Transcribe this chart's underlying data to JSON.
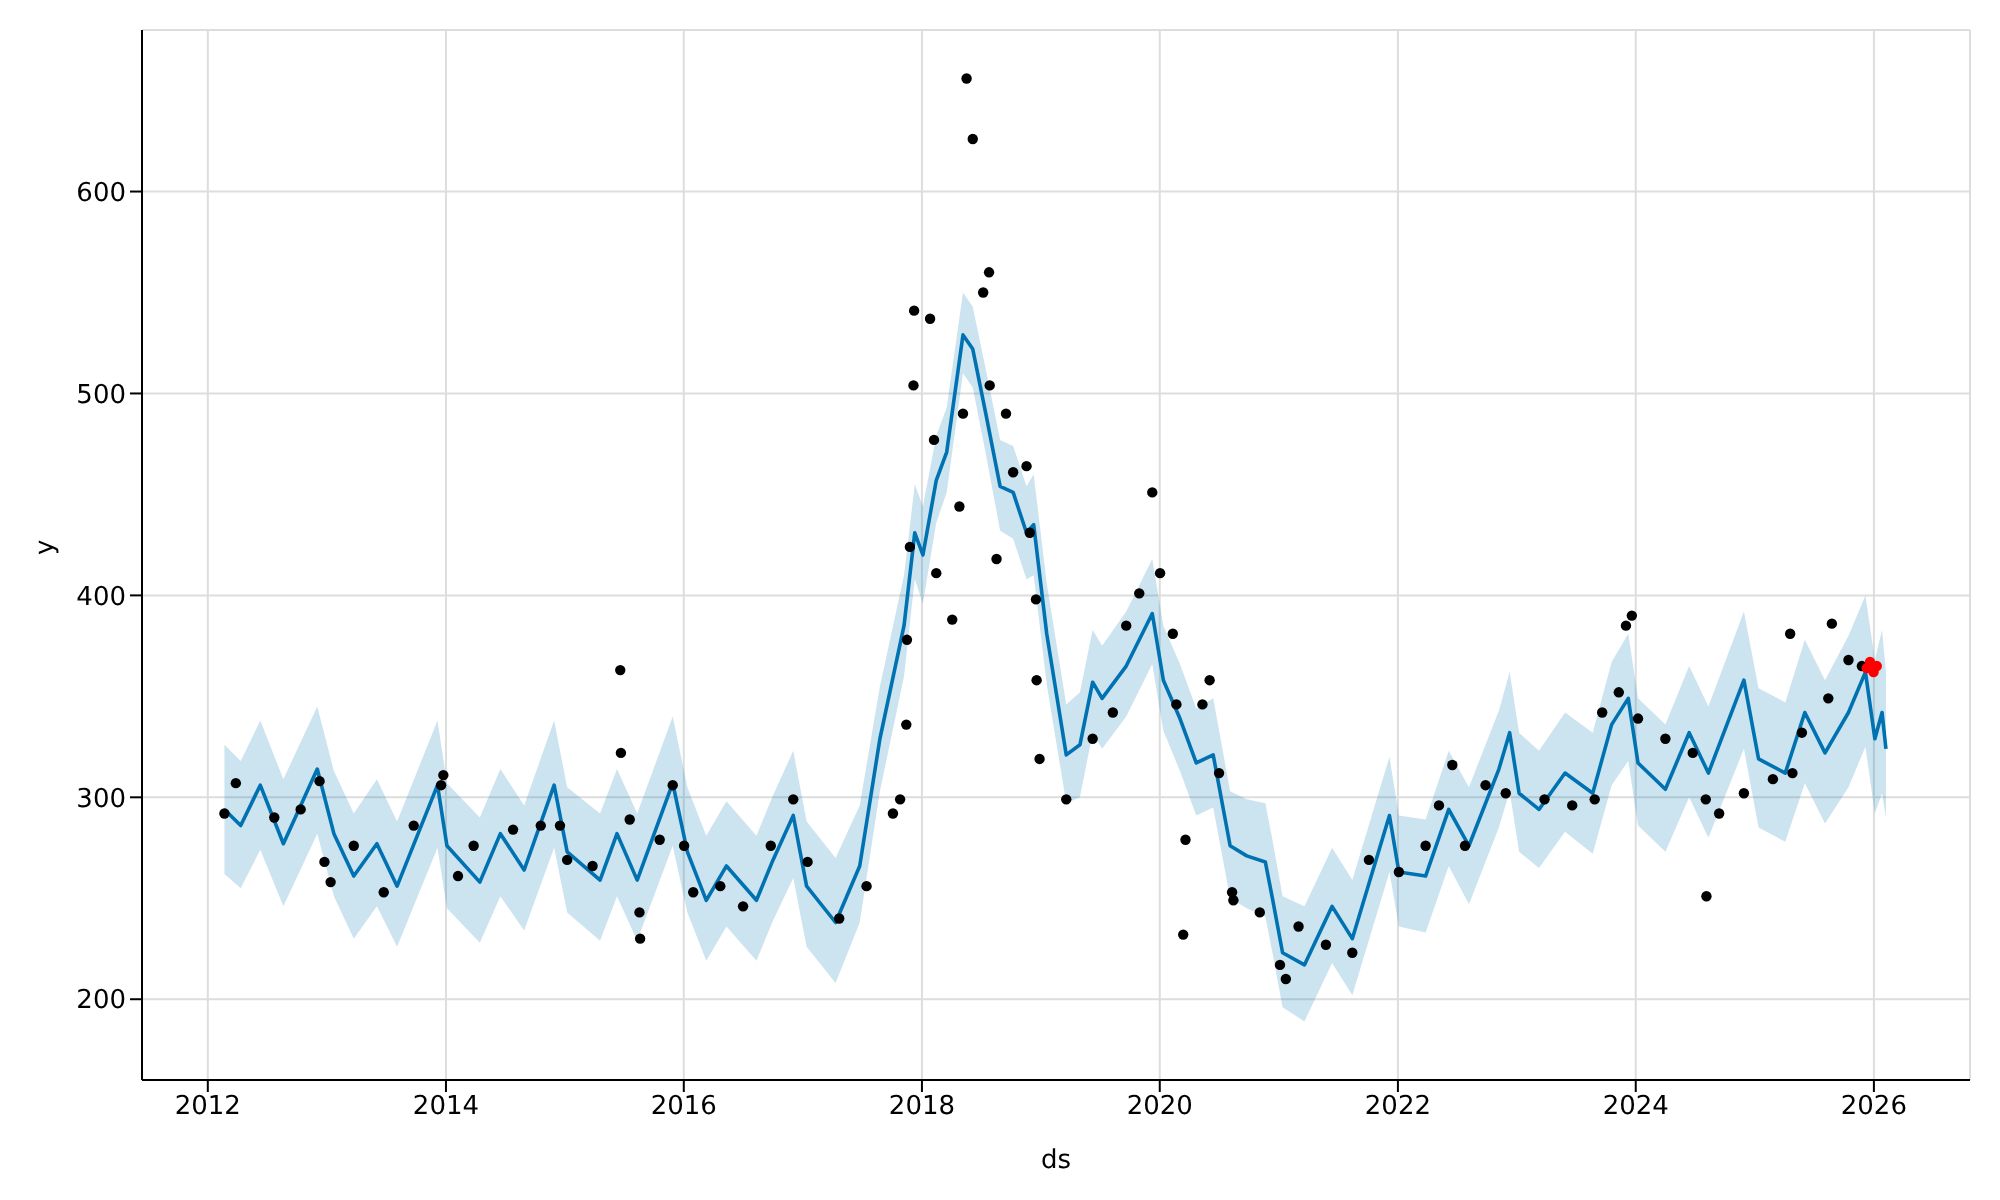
{
  "chart_data": {
    "type": "scatter",
    "xlabel": "ds",
    "ylabel": "y",
    "xlim": [
      "2011-06-13",
      "2026-10-23"
    ],
    "xticks": [
      "2012",
      "2014",
      "2016",
      "2018",
      "2020",
      "2022",
      "2024",
      "2026"
    ],
    "ylim": [
      160,
      680
    ],
    "yticks": [
      200,
      300,
      400,
      500,
      600
    ],
    "grid": true,
    "series": [
      {
        "type": "line",
        "color": "#0072b2",
        "x": [
          "2012-02-21",
          "2012-04-11",
          "2012-06-10",
          "2012-08-20",
          "2012-12-02",
          "2013-01-22",
          "2013-03-24",
          "2013-06-03",
          "2013-08-04",
          "2013-12-06",
          "2014-01-04",
          "2014-04-15",
          "2014-06-17",
          "2014-08-29",
          "2014-11-29",
          "2015-01-08",
          "2015-04-19",
          "2015-06-10",
          "2015-08-11",
          "2015-11-28",
          "2016-01-12",
          "2016-03-10",
          "2016-05-11",
          "2016-08-11",
          "2016-10-01",
          "2016-12-02",
          "2017-01-12",
          "2017-04-11",
          "2017-06-24",
          "2017-08-25",
          "2017-11-07",
          "2017-12-10",
          "2018-01-04",
          "2018-02-14",
          "2018-03-18",
          "2018-05-07",
          "2018-06-06",
          "2018-07-16",
          "2018-08-29",
          "2018-10-08",
          "2018-11-18",
          "2018-12-10",
          "2019-01-19",
          "2019-03-20",
          "2019-05-01",
          "2019-06-09",
          "2019-07-08",
          "2019-09-20",
          "2019-12-09",
          "2020-01-12",
          "2020-03-03",
          "2020-04-22",
          "2020-06-13",
          "2020-08-04",
          "2020-09-24",
          "2020-11-20",
          "2020-12-13",
          "2021-01-12",
          "2021-03-20",
          "2021-06-13",
          "2021-08-14",
          "2021-12-06",
          "2022-01-04",
          "2022-03-27",
          "2022-06-06",
          "2022-08-07",
          "2022-11-07",
          "2022-12-10",
          "2023-01-08",
          "2023-03-10",
          "2023-05-29",
          "2023-08-22",
          "2023-10-19",
          "2023-12-09",
          "2024-01-08",
          "2024-04-01",
          "2024-06-13",
          "2024-08-11",
          "2024-11-28",
          "2025-01-12",
          "2025-04-04",
          "2025-06-03",
          "2025-08-04",
          "2025-10-15",
          "2025-12-06",
          "2026-01-04",
          "2026-01-26",
          "2026-02-07"
        ],
        "values": [
          294,
          286,
          306,
          277,
          314,
          282,
          261,
          277,
          256,
          306,
          276,
          258,
          282,
          264,
          306,
          273,
          259,
          282,
          259,
          307,
          273,
          249,
          266,
          249,
          269,
          291,
          256,
          238,
          266,
          329,
          385,
          431,
          420,
          457,
          471,
          529,
          522,
          490,
          454,
          451,
          431,
          435,
          381,
          321,
          326,
          357,
          349,
          365,
          391,
          358,
          339,
          317,
          321,
          276,
          271,
          268,
          249,
          223,
          217,
          246,
          230,
          291,
          263,
          261,
          294,
          276,
          314,
          332,
          302,
          294,
          312,
          302,
          336,
          349,
          317,
          304,
          332,
          312,
          358,
          319,
          312,
          342,
          322,
          342,
          362,
          329,
          342,
          324
        ],
        "lower": [
          262,
          255,
          274,
          246,
          282,
          251,
          230,
          246,
          226,
          275,
          245,
          228,
          251,
          234,
          275,
          243,
          229,
          251,
          229,
          276,
          243,
          219,
          236,
          219,
          239,
          260,
          226,
          208,
          238,
          303,
          360,
          408,
          396,
          436,
          451,
          510,
          503,
          470,
          432,
          428,
          408,
          410,
          356,
          297,
          300,
          332,
          324,
          340,
          366,
          333,
          313,
          291,
          295,
          250,
          245,
          241,
          222,
          196,
          189,
          218,
          202,
          263,
          236,
          233,
          266,
          247,
          285,
          303,
          273,
          265,
          283,
          272,
          306,
          318,
          286,
          273,
          300,
          280,
          324,
          285,
          278,
          307,
          287,
          305,
          325,
          292,
          302,
          290
        ],
        "upper": [
          326,
          318,
          338,
          309,
          345,
          313,
          292,
          309,
          288,
          338,
          307,
          290,
          314,
          296,
          338,
          305,
          292,
          314,
          292,
          340,
          305,
          281,
          298,
          281,
          301,
          323,
          288,
          270,
          296,
          355,
          410,
          455,
          444,
          479,
          493,
          550,
          543,
          512,
          477,
          474,
          454,
          460,
          406,
          346,
          352,
          383,
          375,
          392,
          418,
          385,
          366,
          344,
          349,
          303,
          299,
          297,
          278,
          251,
          246,
          275,
          259,
          320,
          291,
          289,
          323,
          305,
          343,
          362,
          332,
          323,
          342,
          332,
          367,
          381,
          349,
          336,
          365,
          345,
          392,
          354,
          347,
          378,
          358,
          380,
          400,
          368,
          383,
          362
        ]
      },
      {
        "marker": "circle",
        "color": "#000000",
        "x": [
          "2012-02-21",
          "2012-03-27",
          "2012-07-23",
          "2012-10-12",
          "2012-12-09",
          "2012-12-24",
          "2013-01-12",
          "2013-03-24",
          "2013-06-24",
          "2013-09-24",
          "2013-12-17",
          "2013-12-24",
          "2014-02-07",
          "2014-03-27",
          "2014-07-26",
          "2014-10-19",
          "2014-12-17",
          "2015-01-08",
          "2015-03-27",
          "2015-06-20",
          "2015-06-22",
          "2015-07-19",
          "2015-08-18",
          "2015-08-20",
          "2015-10-19",
          "2015-11-28",
          "2016-01-02",
          "2016-01-30",
          "2016-04-22",
          "2016-07-01",
          "2016-09-24",
          "2016-12-02",
          "2017-01-15",
          "2017-04-22",
          "2017-07-15",
          "2017-10-04",
          "2017-10-26",
          "2017-11-14",
          "2017-11-16",
          "2017-11-25",
          "2017-12-06",
          "2017-12-08",
          "2018-01-26",
          "2018-02-07",
          "2018-02-14",
          "2018-04-04",
          "2018-04-26",
          "2018-05-07",
          "2018-05-18",
          "2018-06-06",
          "2018-07-08",
          "2018-07-26",
          "2018-07-28",
          "2018-08-18",
          "2018-09-16",
          "2018-10-08",
          "2018-11-18",
          "2018-11-28",
          "2018-12-17",
          "2018-12-19",
          "2018-12-28",
          "2019-03-20",
          "2019-06-09",
          "2019-08-10",
          "2019-09-20",
          "2019-10-30",
          "2019-12-09",
          "2020-01-02",
          "2020-02-10",
          "2020-02-21",
          "2020-03-13",
          "2020-03-20",
          "2020-05-11",
          "2020-06-02",
          "2020-07-01",
          "2020-08-10",
          "2020-08-14",
          "2020-11-03",
          "2021-01-04",
          "2021-01-22",
          "2021-03-02",
          "2021-05-25",
          "2021-08-14",
          "2021-10-04",
          "2022-01-04",
          "2022-03-27",
          "2022-05-07",
          "2022-06-17",
          "2022-07-26",
          "2022-09-27",
          "2022-11-28",
          "2023-03-27",
          "2023-06-20",
          "2023-08-28",
          "2023-09-20",
          "2023-11-10",
          "2023-12-02",
          "2023-12-20",
          "2024-01-08",
          "2024-04-01",
          "2024-06-24",
          "2024-08-03",
          "2024-08-05",
          "2024-09-13",
          "2024-11-28",
          "2025-02-25",
          "2025-04-19",
          "2025-04-26",
          "2025-05-25",
          "2025-08-14",
          "2025-08-25",
          "2025-10-15",
          "2025-11-25"
        ],
        "values": [
          292,
          307,
          290,
          294,
          308,
          268,
          258,
          276,
          253,
          286,
          306,
          311,
          261,
          276,
          284,
          286,
          286,
          269,
          266,
          363,
          322,
          289,
          243,
          230,
          279,
          306,
          276,
          253,
          256,
          246,
          276,
          299,
          268,
          240,
          256,
          292,
          299,
          336,
          378,
          424,
          504,
          541,
          537,
          477,
          411,
          388,
          444,
          490,
          656,
          626,
          550,
          560,
          504,
          418,
          490,
          461,
          464,
          431,
          398,
          358,
          319,
          299,
          329,
          342,
          385,
          401,
          451,
          411,
          381,
          346,
          232,
          279,
          346,
          358,
          312,
          253,
          249,
          243,
          217,
          210,
          236,
          227,
          223,
          269,
          263,
          276,
          296,
          316,
          276,
          306,
          302,
          299,
          296,
          299,
          342,
          352,
          385,
          390,
          339,
          329,
          322,
          299,
          251,
          292,
          302,
          309,
          381,
          312,
          332,
          349,
          386,
          368,
          365
        ]
      },
      {
        "marker": "circle",
        "color": "#ff0000",
        "x": [
          "2025-12-10",
          "2025-12-20",
          "2025-12-31",
          "2026-01-10"
        ],
        "values": [
          364,
          367,
          362,
          365
        ]
      }
    ]
  }
}
